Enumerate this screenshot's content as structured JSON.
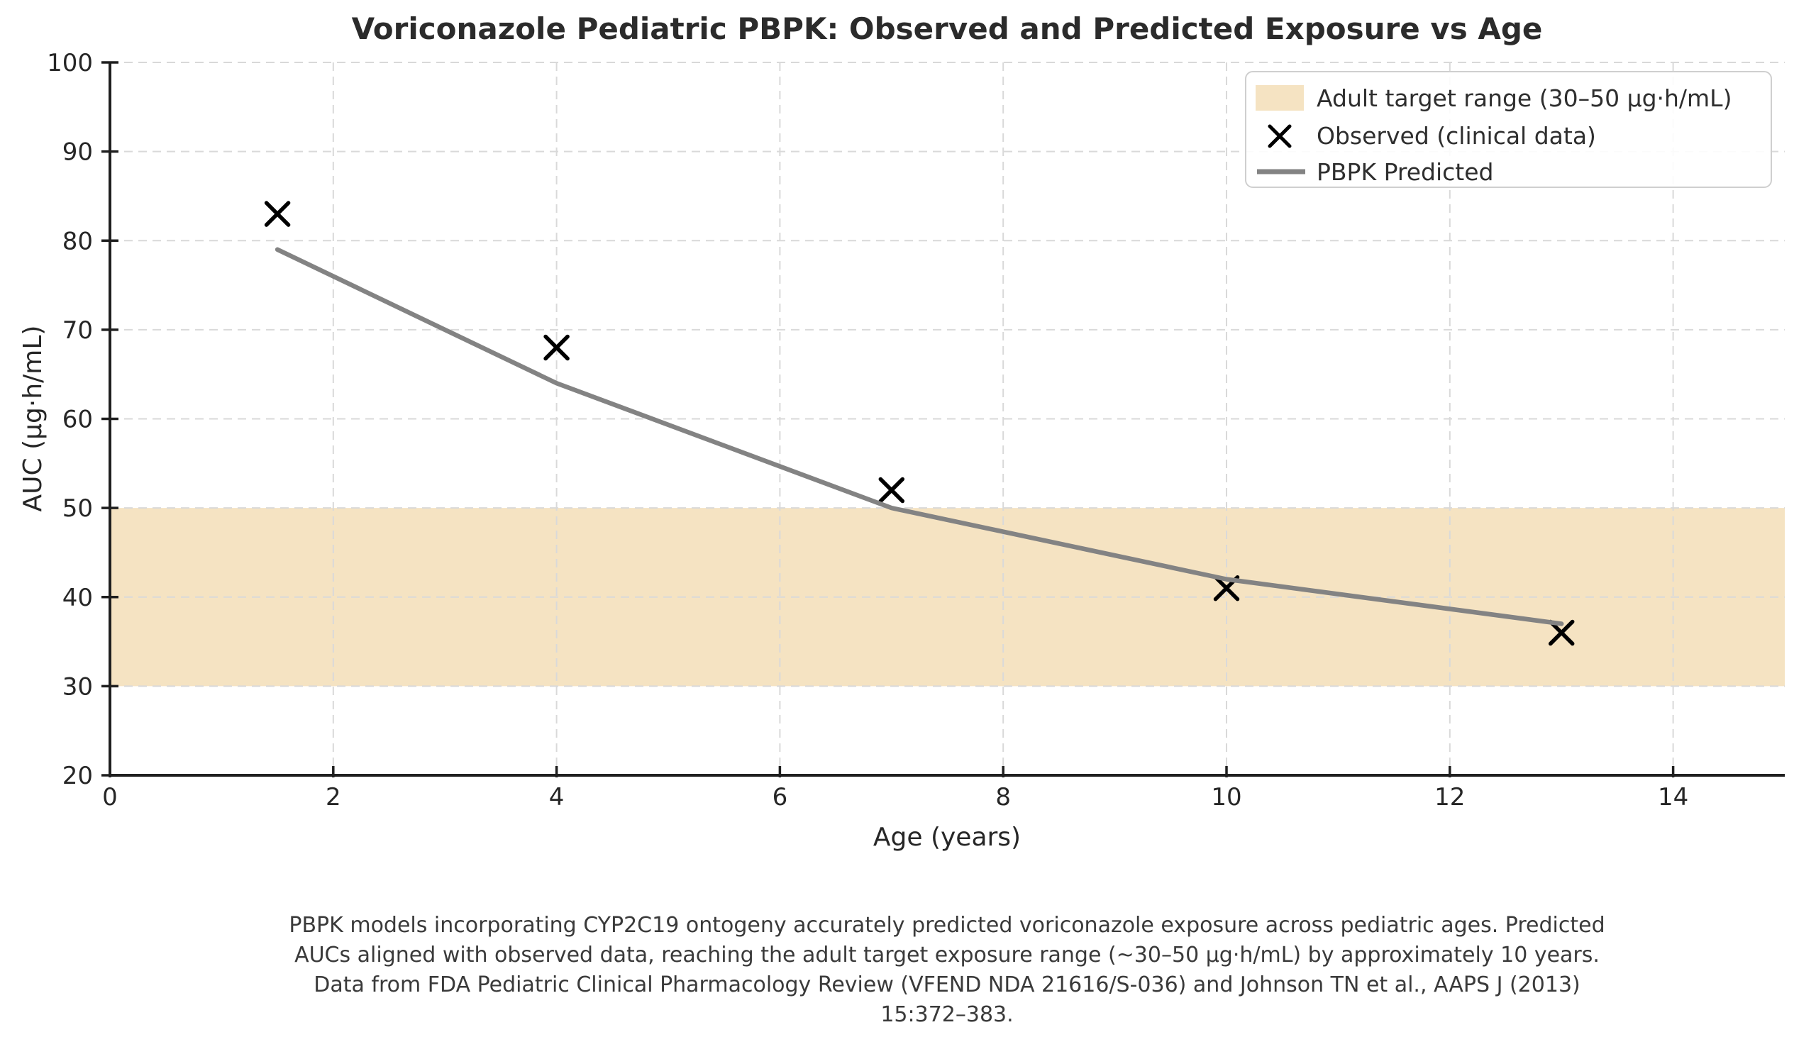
{
  "page": {
    "background": "#ffffff"
  },
  "chart_data": {
    "type": "line",
    "title": "Voriconazole Pediatric PBPK: Observed and Predicted Exposure vs Age",
    "xlabel": "Age (years)",
    "ylabel": "AUC (µg·h/mL)",
    "xlim": [
      0,
      15
    ],
    "ylim": [
      20,
      100
    ],
    "xticks": [
      0,
      2,
      4,
      6,
      8,
      10,
      12,
      14
    ],
    "yticks": [
      20,
      30,
      40,
      50,
      60,
      70,
      80,
      90,
      100
    ],
    "grid": true,
    "legend_position": "upper right",
    "target_band": {
      "label": "Adult target range (30–50 µg·h/mL)",
      "ymin": 30,
      "ymax": 50,
      "color": "#f5e3c2"
    },
    "series": [
      {
        "name": "Observed (clinical data)",
        "type": "scatter",
        "marker": "x",
        "color": "#000000",
        "x": [
          1.5,
          4,
          7,
          10,
          13
        ],
        "y": [
          83,
          68,
          52,
          41,
          36
        ]
      },
      {
        "name": "PBPK Predicted",
        "type": "line",
        "color": "#838383",
        "x": [
          1.5,
          4,
          7,
          10,
          13
        ],
        "y": [
          79,
          64,
          50,
          42,
          37
        ]
      }
    ],
    "caption": [
      "PBPK models incorporating CYP2C19 ontogeny accurately predicted voriconazole exposure across pediatric ages. Predicted",
      "AUCs aligned with observed data, reaching the adult target exposure range (~30–50 µg·h/mL) by approximately 10 years.",
      "Data from FDA Pediatric Clinical Pharmacology Review (VFEND NDA 21616/S-036) and Johnson TN et al., AAPS J (2013)",
      "15:372–383."
    ]
  }
}
